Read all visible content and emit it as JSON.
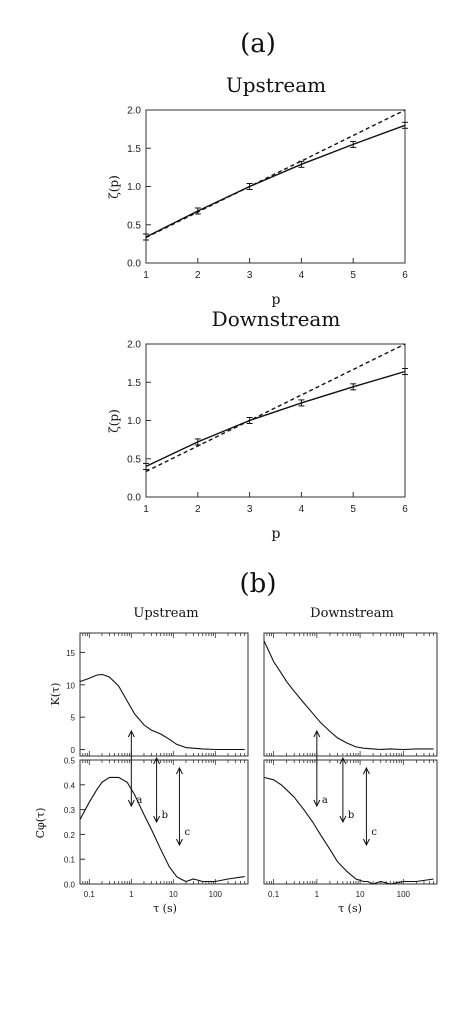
{
  "panel_a": {
    "label": "(a)"
  },
  "panel_b": {
    "label": "(b)"
  },
  "chart_data": [
    {
      "type": "line",
      "title": "Upstream",
      "xlabel": "p",
      "ylabel": "ζ(p)",
      "xlim": [
        1,
        6
      ],
      "ylim": [
        0,
        2.0
      ],
      "xticks": [
        "1",
        "2",
        "3",
        "4",
        "5",
        "6"
      ],
      "yticks": [
        "0.0",
        "0.5",
        "1.0",
        "1.5",
        "2.0"
      ],
      "series": [
        {
          "style": "solid",
          "x": [
            1,
            2,
            3,
            4,
            5,
            6
          ],
          "y": [
            0.34,
            0.68,
            1.0,
            1.29,
            1.55,
            1.8
          ],
          "error_bars": true
        },
        {
          "style": "dashed",
          "x": [
            1,
            6
          ],
          "y": [
            0.333,
            2.0
          ]
        }
      ]
    },
    {
      "type": "line",
      "title": "Downstream",
      "xlabel": "p",
      "ylabel": "ζ(p)",
      "xlim": [
        1,
        6
      ],
      "ylim": [
        0,
        2.0
      ],
      "xticks": [
        "1",
        "2",
        "3",
        "4",
        "5",
        "6"
      ],
      "yticks": [
        "0.0",
        "0.5",
        "1.0",
        "1.5",
        "2.0"
      ],
      "series": [
        {
          "style": "solid",
          "x": [
            1,
            2,
            3,
            4,
            5,
            6
          ],
          "y": [
            0.4,
            0.72,
            1.0,
            1.23,
            1.44,
            1.64
          ],
          "error_bars": true
        },
        {
          "style": "dashed",
          "x": [
            1,
            6
          ],
          "y": [
            0.333,
            2.0
          ]
        }
      ]
    },
    {
      "type": "line",
      "title": "Upstream",
      "ylabel": "K(τ)",
      "xscale": "log",
      "xlim": [
        0.06,
        600
      ],
      "ylim": [
        -1,
        18
      ],
      "yticks": [
        "0",
        "5",
        "10",
        "15"
      ],
      "series": [
        {
          "x": [
            0.06,
            0.1,
            0.15,
            0.2,
            0.3,
            0.5,
            0.8,
            1.2,
            2,
            3,
            5,
            8,
            12,
            20,
            30,
            50,
            100,
            200,
            500
          ],
          "y": [
            10.5,
            11.0,
            11.5,
            11.6,
            11.2,
            9.8,
            7.5,
            5.5,
            3.8,
            3.0,
            2.4,
            1.6,
            0.8,
            0.3,
            0.2,
            0.1,
            0.0,
            0.0,
            0.0
          ]
        }
      ]
    },
    {
      "type": "line",
      "ylabel": "Cφ(τ)",
      "xlabel": "τ (s)",
      "xscale": "log",
      "xlim": [
        0.06,
        600
      ],
      "ylim": [
        0,
        0.5
      ],
      "xticks": [
        "0.1",
        "1",
        "10",
        "100"
      ],
      "yticks": [
        "0.0",
        "0.1",
        "0.2",
        "0.3",
        "0.4",
        "0.5"
      ],
      "annotations": [
        {
          "label": "a",
          "x": 1.0
        },
        {
          "label": "b",
          "x": 4.0
        },
        {
          "label": "c",
          "x": 14
        }
      ],
      "series": [
        {
          "x": [
            0.06,
            0.1,
            0.15,
            0.2,
            0.3,
            0.5,
            0.8,
            1.2,
            2,
            3,
            5,
            8,
            12,
            15,
            20,
            30,
            50,
            100,
            200,
            500
          ],
          "y": [
            0.26,
            0.33,
            0.38,
            0.41,
            0.43,
            0.43,
            0.41,
            0.36,
            0.28,
            0.22,
            0.14,
            0.07,
            0.03,
            0.02,
            0.01,
            0.02,
            0.01,
            0.01,
            0.02,
            0.03
          ]
        }
      ]
    },
    {
      "type": "line",
      "title": "Downstream",
      "xscale": "log",
      "xlim": [
        0.06,
        600
      ],
      "ylim": [
        -1,
        18
      ],
      "series": [
        {
          "x": [
            0.06,
            0.08,
            0.1,
            0.15,
            0.2,
            0.3,
            0.5,
            0.8,
            1.2,
            2,
            3,
            5,
            8,
            12,
            20,
            30,
            50,
            100,
            200,
            500
          ],
          "y": [
            16.8,
            15.0,
            13.6,
            11.8,
            10.5,
            9.0,
            7.2,
            5.6,
            4.2,
            2.8,
            1.8,
            1.0,
            0.4,
            0.2,
            0.1,
            0.0,
            0.1,
            0.0,
            0.1,
            0.1
          ]
        }
      ]
    },
    {
      "type": "line",
      "xlabel": "τ (s)",
      "xscale": "log",
      "xlim": [
        0.06,
        600
      ],
      "ylim": [
        0,
        0.5
      ],
      "xticks": [
        "0.1",
        "1",
        "10",
        "100"
      ],
      "annotations": [
        {
          "label": "a",
          "x": 1.0
        },
        {
          "label": "b",
          "x": 4.0
        },
        {
          "label": "c",
          "x": 14
        }
      ],
      "series": [
        {
          "x": [
            0.06,
            0.1,
            0.15,
            0.2,
            0.3,
            0.5,
            0.8,
            1.2,
            2,
            3,
            5,
            8,
            12,
            15,
            20,
            30,
            50,
            100,
            200,
            500
          ],
          "y": [
            0.43,
            0.42,
            0.4,
            0.38,
            0.35,
            0.3,
            0.25,
            0.2,
            0.14,
            0.09,
            0.05,
            0.02,
            0.01,
            0.01,
            0.0,
            0.01,
            0.0,
            0.01,
            0.01,
            0.02
          ]
        }
      ]
    }
  ]
}
